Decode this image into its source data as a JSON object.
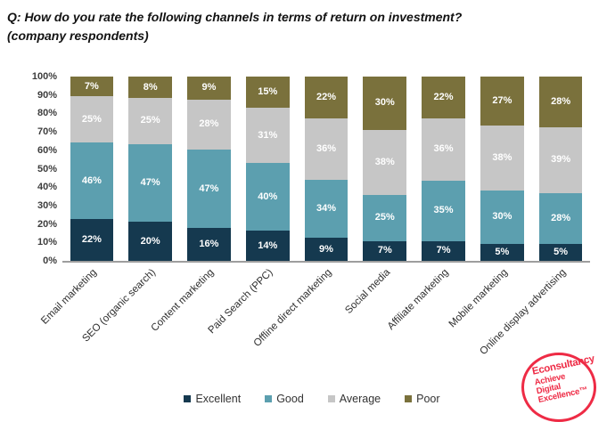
{
  "title": {
    "line1": "Q: How do you rate the following channels in terms of return on investment?",
    "line2": "(company respondents)"
  },
  "chart_data": {
    "type": "bar",
    "stacked": true,
    "title": "Q: How do you rate the following channels in terms of return on investment? (company respondents)",
    "xlabel": "",
    "ylabel": "",
    "ylim": [
      0,
      100
    ],
    "grid": false,
    "legend_position": "bottom",
    "y_ticks": [
      "100%",
      "90%",
      "80%",
      "70%",
      "60%",
      "50%",
      "40%",
      "30%",
      "20%",
      "10%",
      "0%"
    ],
    "categories": [
      "Email marketing",
      "SEO (organic search)",
      "Content marketing",
      "Paid Search (PPC)",
      "Offline direct marketing",
      "Social media",
      "Affiliate marketing",
      "Mobile marketing",
      "Online display advertising"
    ],
    "series": [
      {
        "name": "Excellent",
        "color": "#15394F",
        "values": [
          22,
          20,
          16,
          14,
          9,
          7,
          7,
          5,
          5
        ]
      },
      {
        "name": "Good",
        "color": "#5C9FAF",
        "values": [
          46,
          47,
          47,
          40,
          34,
          25,
          35,
          30,
          28
        ]
      },
      {
        "name": "Average",
        "color": "#C6C6C6",
        "values": [
          25,
          25,
          28,
          31,
          36,
          38,
          36,
          38,
          39
        ]
      },
      {
        "name": "Poor",
        "color": "#7A713C",
        "values": [
          7,
          8,
          9,
          15,
          22,
          30,
          22,
          27,
          28
        ]
      }
    ]
  },
  "colors": {
    "axis": "#9e9e9e",
    "tick_text": "#3d3d3d",
    "bar_label_text": "#ffffff",
    "logo_red": "#ee2b45"
  },
  "logo": {
    "brand": "Econsultancy",
    "tagline1": "Achieve",
    "tagline2": "Digital",
    "tagline3": "Excellence™"
  }
}
